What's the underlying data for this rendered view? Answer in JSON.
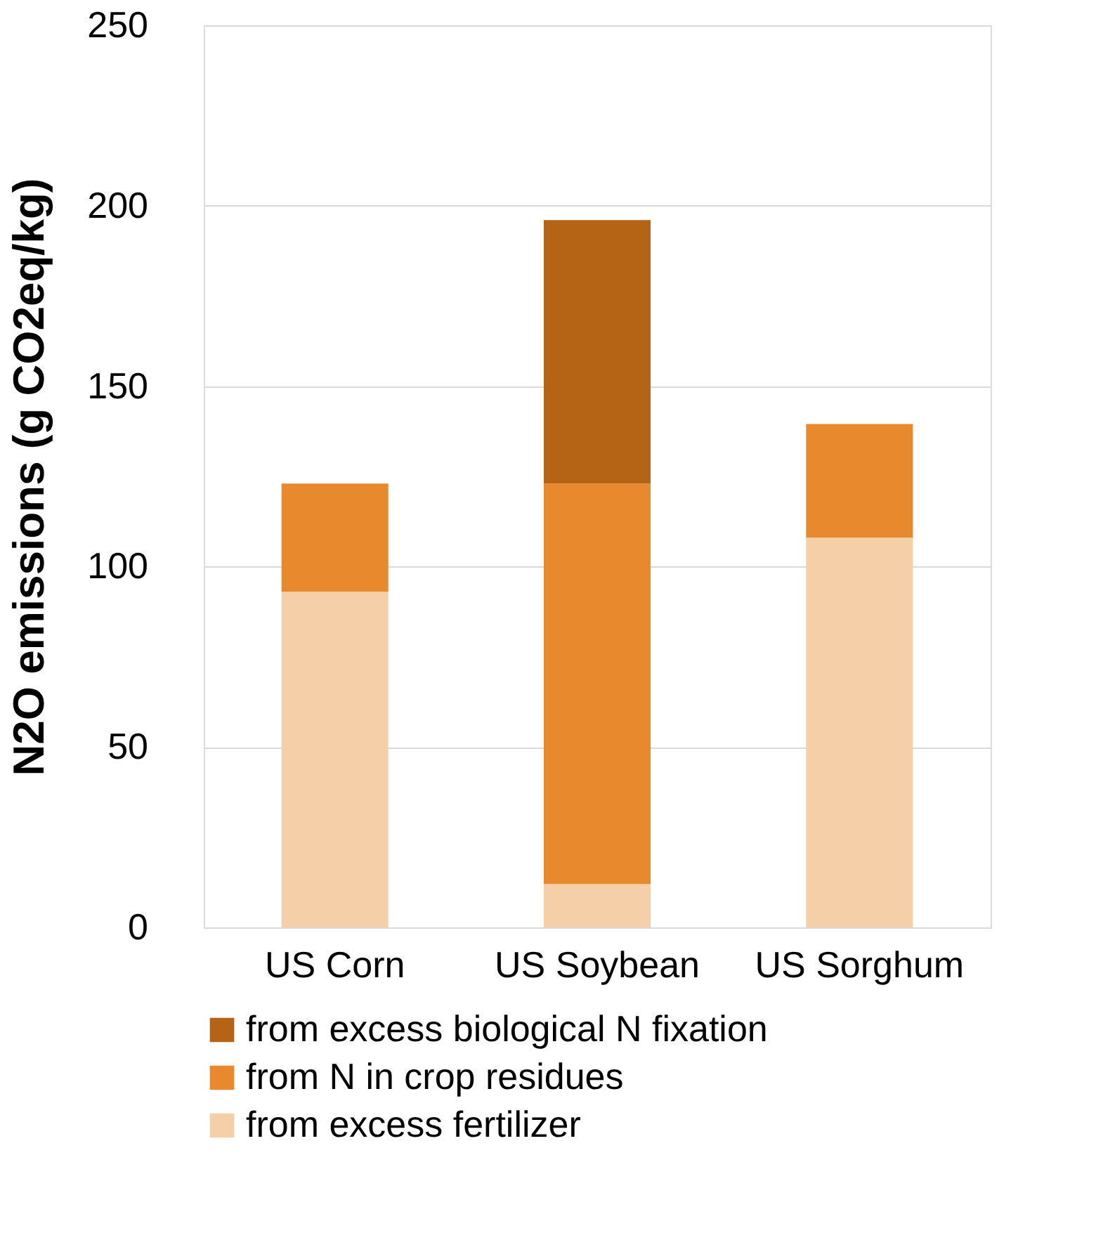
{
  "chart_data": {
    "type": "bar",
    "stacked": true,
    "ylabel": "N2O emissions (g CO2eq/kg)",
    "categories": [
      "US Corn",
      "US Soybean",
      "US Sorghum"
    ],
    "series": [
      {
        "name": "from excess fertilizer",
        "color": "#f5cfa8",
        "values": [
          93,
          12,
          108
        ]
      },
      {
        "name": "from N in crop residues",
        "color": "#e8892e",
        "values": [
          30,
          111,
          31.5
        ]
      },
      {
        "name": "from excess biological N fixation",
        "color": "#b56416",
        "values": [
          null,
          73,
          null
        ]
      }
    ],
    "ylim": [
      0,
      250
    ],
    "yticks": [
      0,
      50,
      100,
      150,
      200,
      250
    ],
    "grid": "y",
    "legend": "bottom"
  }
}
